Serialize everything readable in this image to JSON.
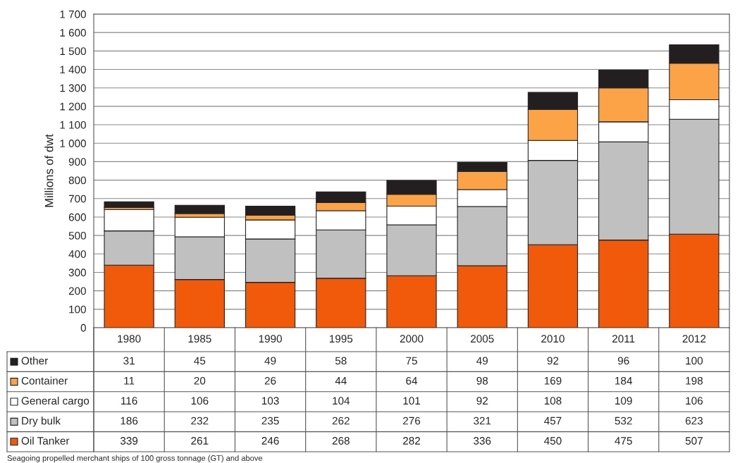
{
  "chart_data": {
    "type": "bar",
    "stacked": true,
    "ylabel": "Millions of dwt",
    "categories": [
      "1980",
      "1985",
      "1990",
      "1995",
      "2000",
      "2005",
      "2010",
      "2011",
      "2012"
    ],
    "series": [
      {
        "name": "Oil Tanker",
        "color": "#f05a0a",
        "values": [
          339,
          261,
          246,
          268,
          282,
          336,
          450,
          475,
          507
        ]
      },
      {
        "name": "Dry bulk",
        "color": "#c0c0c0",
        "values": [
          186,
          232,
          235,
          262,
          276,
          321,
          457,
          532,
          623
        ]
      },
      {
        "name": "General cargo",
        "color": "#ffffff",
        "values": [
          116,
          106,
          103,
          104,
          101,
          92,
          108,
          109,
          106
        ]
      },
      {
        "name": "Container",
        "color": "#fba346",
        "values": [
          11,
          20,
          26,
          44,
          64,
          98,
          169,
          184,
          198
        ]
      },
      {
        "name": "Other",
        "color": "#231f20",
        "values": [
          31,
          45,
          49,
          58,
          75,
          49,
          92,
          96,
          100
        ]
      }
    ],
    "ylim": [
      0,
      1700
    ],
    "yticks": [
      0,
      100,
      200,
      300,
      400,
      500,
      600,
      700,
      800,
      900,
      {
        "value": 1000,
        "label": "1 000"
      },
      {
        "value": 1100,
        "label": "1 100"
      },
      {
        "value": 1200,
        "label": "1 200"
      },
      {
        "value": 1300,
        "label": "1 300"
      },
      {
        "value": 1400,
        "label": "1 400"
      },
      {
        "value": 1500,
        "label": "1 500"
      },
      {
        "value": 1600,
        "label": "1 600"
      },
      {
        "value": 1700,
        "label": "1 700"
      }
    ],
    "grid": "y",
    "legend": "bottom left",
    "data_labels": true,
    "annotations": [
      "Seagoing propelled merchant ships of 100 gross tonnage (GT) and above"
    ]
  }
}
